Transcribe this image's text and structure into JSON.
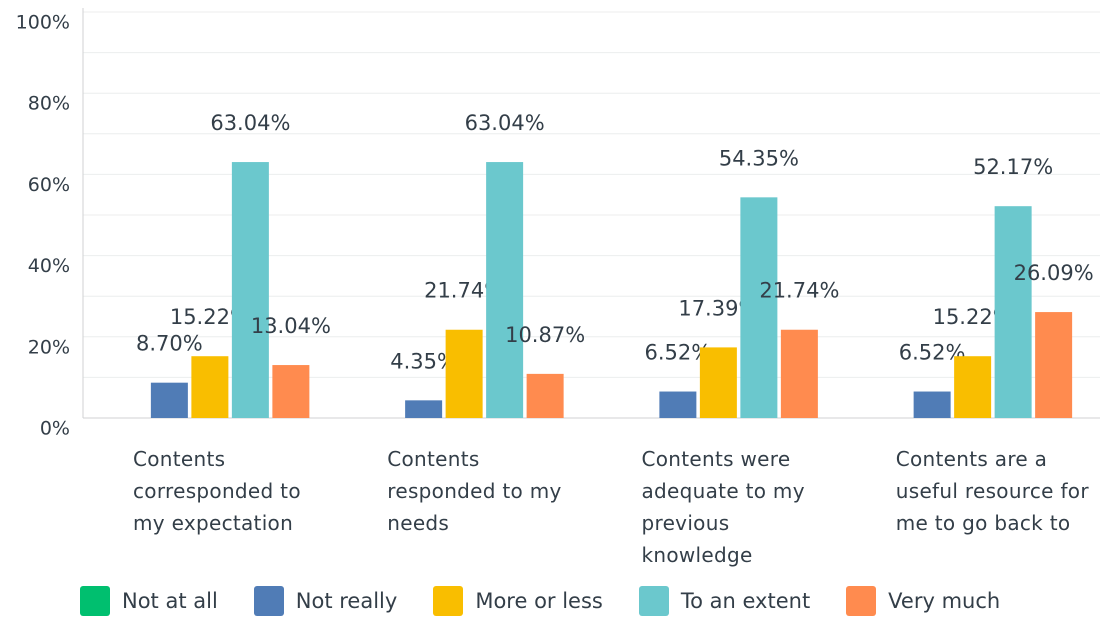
{
  "chart_data": {
    "type": "bar",
    "categories": [
      "Contents corresponded to my expectation",
      "Contents responded to my needs",
      "Contents were adequate to my previous knowledge",
      "Contents are a useful resource for me to go back to"
    ],
    "series": [
      {
        "name": "Not at all",
        "color": "#00bf6f",
        "values": [
          0,
          0,
          0,
          0
        ]
      },
      {
        "name": "Not really",
        "color": "#507cb6",
        "values": [
          8.7,
          4.35,
          6.52,
          6.52
        ],
        "value_labels": [
          "8.70%",
          "4.35%",
          "6.52%",
          "6.52%"
        ]
      },
      {
        "name": "More or less",
        "color": "#f9be00",
        "values": [
          15.22,
          21.74,
          17.39,
          15.22
        ],
        "value_labels": [
          "15.22%",
          "21.74%",
          "17.39%",
          "15.22%"
        ]
      },
      {
        "name": "To an extent",
        "color": "#6bc8cd",
        "values": [
          63.04,
          63.04,
          54.35,
          52.17
        ],
        "value_labels": [
          "63.04%",
          "63.04%",
          "54.35%",
          "52.17%"
        ]
      },
      {
        "name": "Very much",
        "color": "#ff8b4f",
        "values": [
          13.04,
          10.87,
          21.74,
          26.09
        ],
        "value_labels": [
          "13.04%",
          "10.87%",
          "21.74%",
          "26.09%"
        ]
      }
    ],
    "ylim": [
      0,
      100
    ],
    "yticks": [
      {
        "value": 0,
        "label": "0%"
      },
      {
        "value": 20,
        "label": "20%"
      },
      {
        "value": 40,
        "label": "40%"
      },
      {
        "value": 60,
        "label": "60%"
      },
      {
        "value": 80,
        "label": "80%"
      },
      {
        "value": 100,
        "label": "100%"
      }
    ],
    "minor_yticks": [
      10,
      30,
      50,
      70,
      90
    ],
    "grid": true,
    "legend": "bottom"
  }
}
